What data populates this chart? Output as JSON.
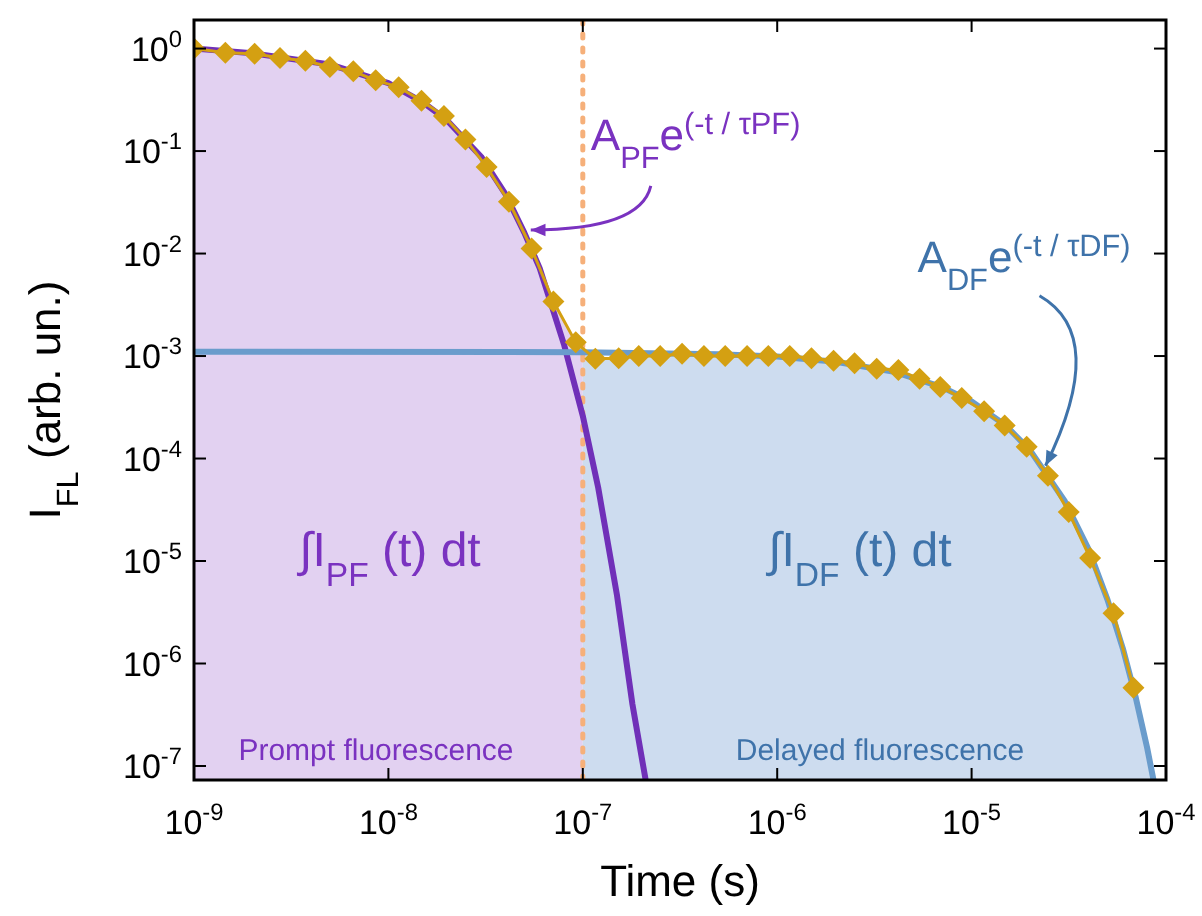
{
  "chart_data": {
    "type": "line",
    "xlabel": "Time (s)",
    "ylabel": "I$_{FL}$ (arb. un.)",
    "log": "xy",
    "grid": false,
    "xlim": [
      1e-09,
      0.0001
    ],
    "ylim": [
      7.3e-08,
      1.9
    ],
    "xticks": [
      {
        "value": 1e-09,
        "label": "10$^{-9}$"
      },
      {
        "value": 1e-08,
        "label": "10$^{-8}$"
      },
      {
        "value": 1e-07,
        "label": "10$^{-7}$"
      },
      {
        "value": 1e-06,
        "label": "10$^{-6}$"
      },
      {
        "value": 1e-05,
        "label": "10$^{-5}$"
      },
      {
        "value": 0.0001,
        "label": "10$^{-4}$"
      }
    ],
    "yticks": [
      {
        "value": 1e-07,
        "label": "10$^{-7}$"
      },
      {
        "value": 1e-06,
        "label": "10$^{-6}$"
      },
      {
        "value": 1e-05,
        "label": "10$^{-5}$"
      },
      {
        "value": 0.0001,
        "label": "10$^{-4}$"
      },
      {
        "value": 0.001,
        "label": "10$^{-3}$"
      },
      {
        "value": 0.01,
        "label": "10$^{-2}$"
      },
      {
        "value": 0.1,
        "label": "10$^{-1}$"
      },
      {
        "value": 1,
        "label": "10$^{0}$"
      }
    ],
    "series": [
      {
        "type": "area",
        "color": "#e2d1f1",
        "x": [
          1e-09,
          1.45e-09,
          2.05e-09,
          2.77e-09,
          3.74e-09,
          5e-09,
          6.6e-09,
          8.6e-09,
          1.13e-08,
          1.48e-08,
          1.93e-08,
          2.49e-08,
          3.2e-08,
          4.17e-08,
          5.45e-08,
          7.06e-08,
          9.2e-08,
          1e-07
        ],
        "values": [
          1,
          0.91,
          0.89,
          0.81,
          0.76,
          0.66,
          0.6,
          0.49,
          0.42,
          0.31,
          0.22,
          0.13,
          0.07,
          0.032,
          0.0112,
          0.0034,
          0.00136,
          0.0012
        ]
      },
      {
        "type": "area",
        "color": "#cddcef",
        "x": [
          1e-07,
          1.16e-07,
          1.53e-07,
          1.94e-07,
          2.5e-07,
          3.24e-07,
          4.2e-07,
          5.4e-07,
          7e-07,
          9e-07,
          1.16e-06,
          1.5e-06,
          1.95e-06,
          2.5e-06,
          3.25e-06,
          4.2e-06,
          5.4e-06,
          6.9e-06,
          8.9e-06,
          1.16e-05,
          1.48e-05,
          1.92e-05,
          2.47e-05,
          3.16e-05,
          4.07e-05,
          5.37e-05,
          6.8e-05,
          8.6e-05
        ],
        "values": [
          0.0012,
          0.00094,
          0.00095,
          0.001,
          0.001,
          0.00105,
          0.001,
          0.001,
          0.001,
          0.001,
          0.001,
          0.00095,
          0.0009,
          0.00085,
          0.00075,
          0.00073,
          0.0006,
          0.0005,
          0.00039,
          0.00029,
          0.00021,
          0.00013,
          6.8e-05,
          3e-05,
          1.07e-05,
          3.1e-06,
          5.8e-07,
          7.5e-08
        ]
      },
      {
        "color": "#7030b8",
        "marker": "none",
        "x": [
          1e-09,
          2e-09,
          5e-09,
          1e-08,
          1.5e-08,
          2e-08,
          3e-08,
          4e-08,
          5e-08,
          6e-08,
          8e-08,
          1e-07,
          1.2e-07,
          1.5e-07,
          1.8e-07,
          2.1e-07
        ],
        "values": [
          1,
          0.9,
          0.7,
          0.46,
          0.3,
          0.2,
          0.088,
          0.038,
          0.016,
          0.0072,
          0.0013,
          0.00026,
          5.2e-05,
          4.6e-06,
          4e-07,
          7.5e-08
        ]
      },
      {
        "color": "#6a9ccc",
        "marker": "none",
        "x": [
          1e-09,
          1e-07,
          5e-07,
          1e-06,
          2e-06,
          4e-06,
          7e-06,
          1e-05,
          1.5e-05,
          2e-05,
          3e-05,
          4e-05,
          5e-05,
          6e-05,
          7e-05,
          8e-05,
          8.6e-05
        ],
        "values": [
          0.0011,
          0.00109,
          0.00104,
          0.00099,
          0.00088,
          0.0007,
          0.0005,
          0.00036,
          0.00021,
          0.00012,
          3.9e-05,
          1.3e-05,
          4.2e-06,
          1.4e-06,
          4.6e-07,
          1.5e-07,
          7.5e-08
        ]
      },
      {
        "color": "#d4a012",
        "marker": "diamond",
        "x": [
          1e-09,
          1.45e-09,
          2.05e-09,
          2.77e-09,
          3.74e-09,
          5e-09,
          6.6e-09,
          8.6e-09,
          1.13e-08,
          1.48e-08,
          1.93e-08,
          2.49e-08,
          3.2e-08,
          4.17e-08,
          5.45e-08,
          7.06e-08,
          9.2e-08,
          1.16e-07,
          1.53e-07,
          1.94e-07,
          2.5e-07,
          3.24e-07,
          4.2e-07,
          5.4e-07,
          7e-07,
          9e-07,
          1.16e-06,
          1.5e-06,
          1.95e-06,
          2.5e-06,
          3.25e-06,
          4.2e-06,
          5.4e-06,
          6.9e-06,
          8.9e-06,
          1.16e-05,
          1.48e-05,
          1.92e-05,
          2.47e-05,
          3.16e-05,
          4.07e-05,
          5.37e-05,
          6.8e-05
        ],
        "values": [
          1,
          0.91,
          0.89,
          0.81,
          0.76,
          0.66,
          0.6,
          0.49,
          0.42,
          0.31,
          0.22,
          0.13,
          0.07,
          0.032,
          0.0112,
          0.0034,
          0.00136,
          0.00094,
          0.00095,
          0.001,
          0.001,
          0.00105,
          0.001,
          0.001,
          0.001,
          0.001,
          0.001,
          0.00095,
          0.0009,
          0.00085,
          0.00075,
          0.00073,
          0.0006,
          0.0005,
          0.00039,
          0.00029,
          0.00021,
          0.00013,
          6.8e-05,
          3e-05,
          1.07e-05,
          3.1e-06,
          5.8e-07
        ]
      }
    ],
    "ref_lines": [
      {
        "axis": "x",
        "value": 1e-07,
        "color": "#f6b07a",
        "line_style": "dotted"
      }
    ],
    "annotations": [
      {
        "text": "A$_{PF}$e$^{(-t / τPF)}$",
        "x": 5.4e-08,
        "y": 0.017
      },
      {
        "text": "A$_{DF}$e$^{(-t / τDF)}$",
        "x": 2.4e-05,
        "y": 8.5e-05
      },
      "∫I$_{PF}$ (t) dt",
      "∫I$_{DF}$ (t) dt",
      "Prompt fluorescence",
      "Delayed fluorescence"
    ]
  }
}
